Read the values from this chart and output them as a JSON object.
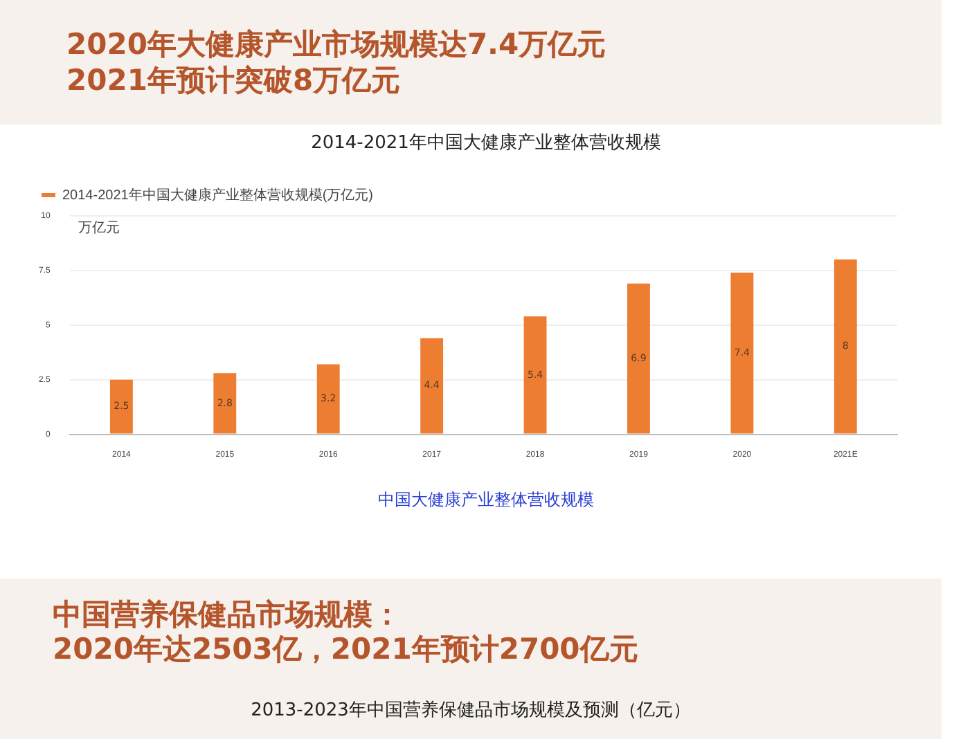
{
  "chart_data": {
    "type": "bar",
    "title": "2014-2021年中国大健康产业整体营收规模",
    "ylabel": "万亿元",
    "annotations": [
      "2020年大健康产业市场规模达7.4万亿元",
      "2021年预计突破8万亿元",
      "中国大健康产业整体营收规模",
      "中国营养保健品市场规模：",
      "2020年达2503亿，2021年预计2700亿元",
      "2013-2023年中国营养保健品市场规模及预测（亿元）"
    ],
    "categories": [
      "2014",
      "2015",
      "2016",
      "2017",
      "2018",
      "2019",
      "2020",
      "2021E"
    ],
    "series": [
      {
        "name": "2014-2021年中国大健康产业整体营收规模(万亿元)",
        "color": "#ed7d31",
        "values": [
          2.5,
          2.8,
          3.2,
          4.4,
          5.4,
          6.9,
          7.4,
          8
        ]
      }
    ],
    "ylim": [
      0,
      10
    ],
    "yticks": [
      0,
      2.5,
      5,
      7.5,
      10
    ],
    "grid": "y",
    "legend": "top left",
    "data_labels": true
  }
}
